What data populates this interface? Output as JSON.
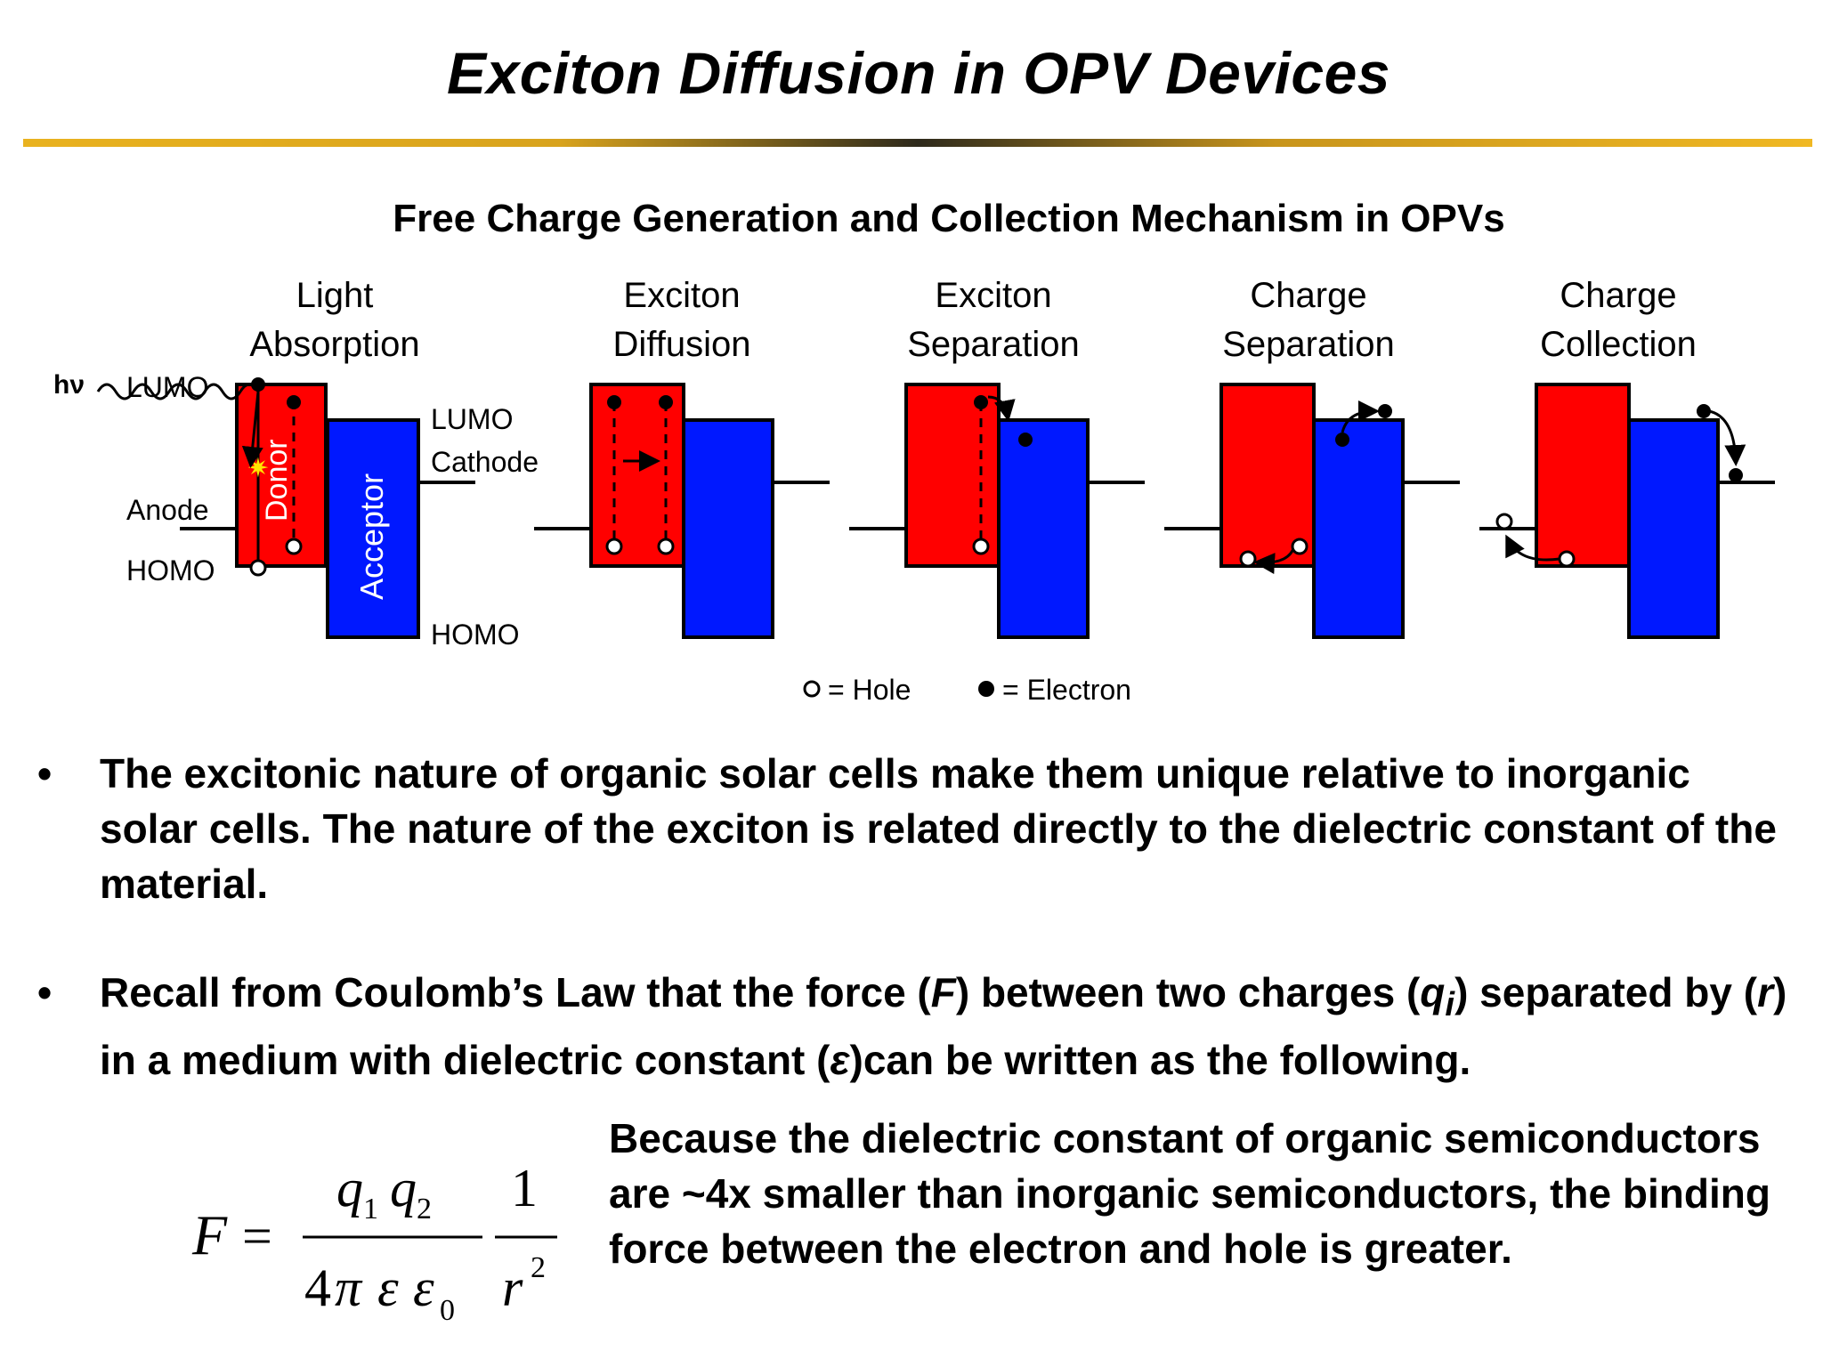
{
  "slide": {
    "title": "Exciton Diffusion in OPV Devices"
  },
  "diagram": {
    "title": "Free Charge Generation and Collection Mechanism in OPVs",
    "stages": [
      {
        "line1": "Light",
        "line2": "Absorption"
      },
      {
        "line1": "Exciton",
        "line2": "Diffusion"
      },
      {
        "line1": "Exciton",
        "line2": "Separation"
      },
      {
        "line1": "Charge",
        "line2": "Separation"
      },
      {
        "line1": "Charge",
        "line2": "Collection"
      }
    ],
    "labels": {
      "hv": "hν",
      "lumo_left": "LUMO",
      "anode": "Anode",
      "homo_left": "HOMO",
      "lumo_right": "LUMO",
      "cathode": "Cathode",
      "homo_right": "HOMO",
      "donor": "Donor",
      "acceptor": "Acceptor"
    },
    "legend": {
      "hole": "= Hole",
      "electron": "= Electron"
    },
    "colors": {
      "donor": "#ff0000",
      "acceptor": "#0018ff"
    }
  },
  "bullets": [
    {
      "text": "The excitonic nature of organic solar cells make them unique relative to inorganic solar cells.  The nature of the exciton is related directly to the dielectric constant of the material."
    },
    {
      "t1": "Recall from Coulomb’s Law that the force (",
      "F": "F",
      "t2": ") between two charges (",
      "q": "q",
      "sub": "i",
      "t3": ") separated by (",
      "r": "r",
      "t4": ") in a medium with dielectric constant (",
      "eps": "ε",
      "t5": ")can be written as the following."
    }
  ],
  "note": "Because the dielectric constant of organic semiconductors are ~4x smaller than inorganic semiconductors, the binding force between the electron and hole is greater.",
  "formula": {
    "lhs": "F",
    "eq": "=",
    "q1": "q",
    "q1_sub": "1",
    "q2": "q",
    "q2_sub": "2",
    "four": "4",
    "pi": "π",
    "eps": "ε",
    "eps0": "ε",
    "eps0_sub": "0",
    "one": "1",
    "r": "r",
    "r_exp": "2"
  }
}
